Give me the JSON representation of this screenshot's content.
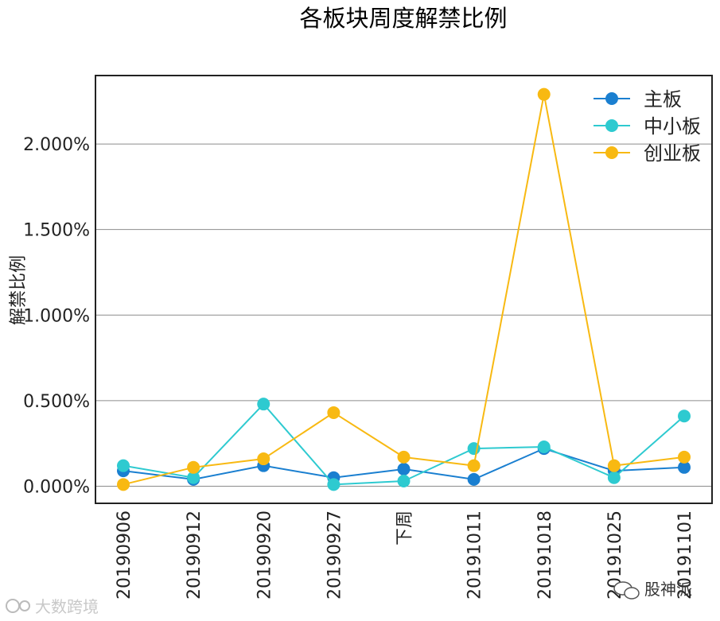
{
  "chart_data": {
    "type": "line",
    "title": "各板块周度解禁比例",
    "xlabel": "",
    "ylabel": "解禁比例",
    "categories": [
      "20190906",
      "20190912",
      "20190920",
      "20190927",
      "下周",
      "20191011",
      "20191018",
      "20191025",
      "20191101"
    ],
    "ylim": [
      -0.1,
      2.4
    ],
    "yticks": [
      0.0,
      0.5,
      1.0,
      1.5,
      2.0
    ],
    "ytick_labels": [
      "0.000%",
      "0.500%",
      "1.000%",
      "1.500%",
      "2.000%"
    ],
    "grid": "horizontal",
    "legend_position": "top-right",
    "series": [
      {
        "name": "主板",
        "color": "#1a7fd0",
        "values": [
          0.09,
          0.04,
          0.12,
          0.05,
          0.1,
          0.04,
          0.22,
          0.09,
          0.11
        ]
      },
      {
        "name": "中小板",
        "color": "#2ecad0",
        "values": [
          0.12,
          0.05,
          0.48,
          0.01,
          0.03,
          0.22,
          0.23,
          0.05,
          0.41
        ]
      },
      {
        "name": "创业板",
        "color": "#f8b912",
        "values": [
          0.01,
          0.11,
          0.16,
          0.43,
          0.17,
          0.12,
          2.29,
          0.12,
          0.17
        ]
      }
    ]
  },
  "watermarks": {
    "bottom_left": "大数跨境",
    "bottom_right": "股神派"
  }
}
